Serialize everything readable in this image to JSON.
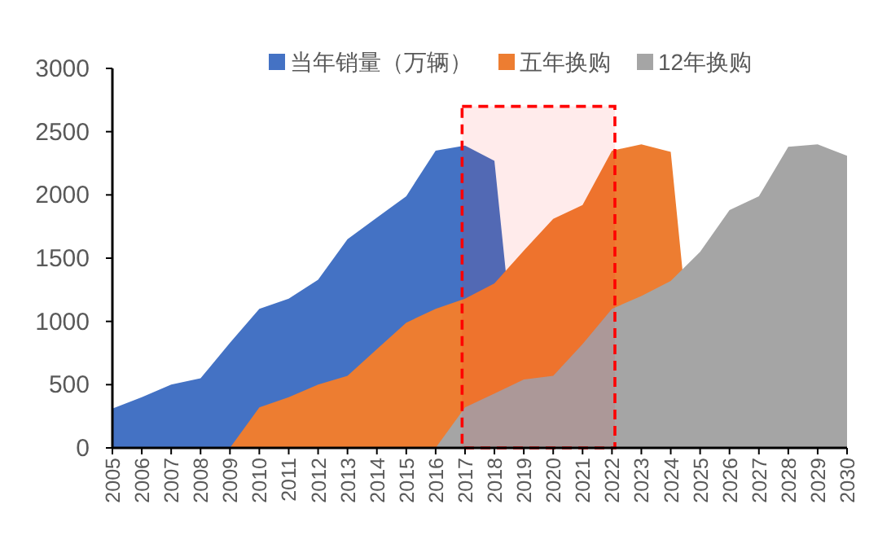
{
  "chart_data": {
    "type": "area",
    "categories": [
      "2005",
      "2006",
      "2007",
      "2008",
      "2009",
      "2010",
      "2011",
      "2012",
      "2013",
      "2014",
      "2015",
      "2016",
      "2017",
      "2018",
      "2019",
      "2020",
      "2021",
      "2022",
      "2023",
      "2024",
      "2025",
      "2026",
      "2027",
      "2028",
      "2029",
      "2030"
    ],
    "series": [
      {
        "name": "当年销量（万辆）",
        "color": "#4472c4",
        "values": [
          310,
          400,
          500,
          550,
          830,
          1100,
          1180,
          1330,
          1650,
          1820,
          1990,
          2350,
          2390,
          2270,
          0,
          null,
          null,
          null,
          null,
          null,
          null,
          null,
          null,
          null,
          null,
          null
        ]
      },
      {
        "name": "五年换购",
        "color": "#ed7d31",
        "values": [
          null,
          null,
          null,
          null,
          0,
          320,
          400,
          500,
          570,
          780,
          990,
          1100,
          1180,
          1300,
          1560,
          1810,
          1920,
          2350,
          2400,
          2340,
          0,
          null,
          null,
          null,
          null,
          null
        ]
      },
      {
        "name": "12年换购",
        "color": "#a5a5a5",
        "values": [
          null,
          null,
          null,
          null,
          null,
          null,
          null,
          null,
          null,
          null,
          null,
          0,
          320,
          430,
          540,
          570,
          820,
          1100,
          1200,
          1320,
          1550,
          1880,
          1990,
          2380,
          2400,
          2310
        ]
      }
    ],
    "ylim": [
      0,
      3000
    ],
    "yticks": [
      0,
      500,
      1000,
      1500,
      2000,
      2500,
      3000
    ],
    "legend": "top",
    "bands": [
      {
        "axis": "x",
        "from": "2017",
        "to": "2022",
        "color": "#ff0000"
      }
    ]
  }
}
